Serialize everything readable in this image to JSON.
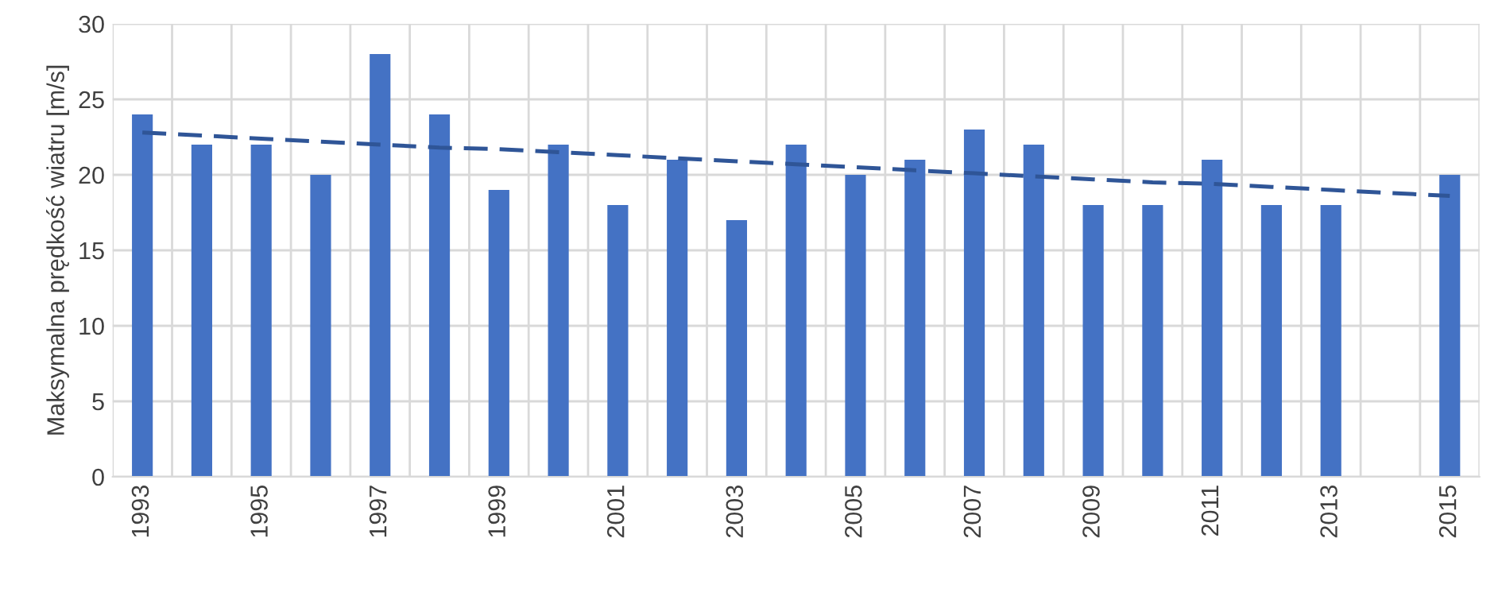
{
  "chart_data": {
    "type": "bar",
    "ylabel": "Maksymalna prędkość wiatru [m/s]",
    "categories": [
      "1993",
      null,
      "1995",
      null,
      "1997",
      null,
      "1999",
      null,
      "2001",
      null,
      "2003",
      null,
      "2005",
      null,
      "2007",
      null,
      "2009",
      null,
      "2011",
      null,
      "2013",
      null,
      "2015"
    ],
    "series": [
      {
        "color": "#4472c4",
        "values": [
          24,
          22,
          22,
          20,
          28,
          24,
          19,
          22,
          18,
          21,
          17,
          22,
          20,
          21,
          23,
          22,
          18,
          18,
          21,
          18,
          18,
          null,
          20
        ]
      },
      {
        "type": "line",
        "color": "#2f5597",
        "line_style": "dashed",
        "values": [
          22.8,
          22.6,
          22.4,
          22.2,
          22.0,
          21.8,
          21.7,
          21.5,
          21.3,
          21.1,
          20.9,
          20.7,
          20.5,
          20.3,
          20.1,
          19.9,
          19.7,
          19.5,
          19.4,
          19.2,
          19.0,
          18.8,
          18.6
        ]
      }
    ],
    "ylim": [
      0,
      30
    ],
    "yticks": [
      0,
      5,
      10,
      15,
      20,
      25,
      30
    ],
    "grid": true
  }
}
